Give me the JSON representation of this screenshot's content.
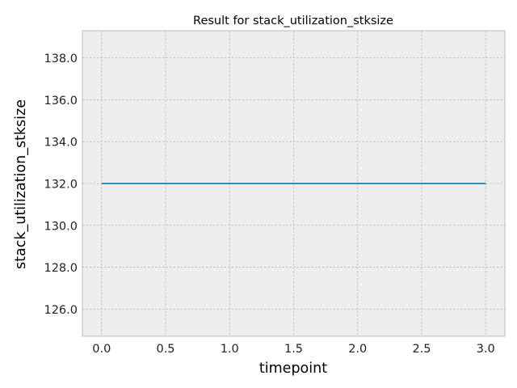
{
  "chart_data": {
    "type": "line",
    "title": "Result for stack_utilization_stksize",
    "xlabel": "timepoint",
    "ylabel": "stack_utilization_stksize",
    "x": [
      0,
      1,
      2,
      3
    ],
    "series": [
      {
        "values": [
          132,
          132,
          132,
          132
        ],
        "color": "#348abd"
      }
    ],
    "xlim": [
      -0.15,
      3.15
    ],
    "ylim": [
      124.7,
      139.3
    ],
    "xticks": [
      0,
      0.5,
      1,
      1.5,
      2,
      2.5,
      3
    ],
    "xtick_labels": [
      "0.0",
      "0.5",
      "1.0",
      "1.5",
      "2.0",
      "2.5",
      "3.0"
    ],
    "yticks": [
      126,
      128,
      130,
      132,
      134,
      136,
      138
    ],
    "ytick_labels": [
      "126.0",
      "128.0",
      "130.0",
      "132.0",
      "134.0",
      "136.0",
      "138.0"
    ],
    "grid": true,
    "plot_background": "#eeeeee",
    "frame_color": "#bcbcbc"
  }
}
